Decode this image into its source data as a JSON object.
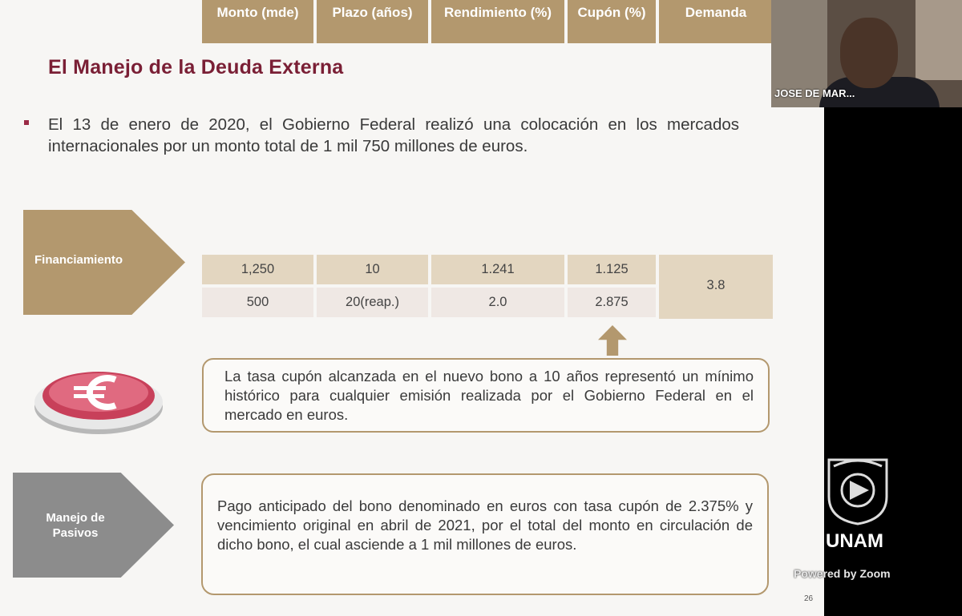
{
  "slide": {
    "title": "El Manejo de la Deuda Externa",
    "bullet": "El 13 de enero de 2020, el Gobierno Federal realizó una colocación en los mercados internacionales por un monto total de 1 mil 750 millones de euros.",
    "financing_label": "Financiamiento",
    "table": {
      "headers": [
        "Monto (mde)",
        "Plazo (años)",
        "Rendimiento (%)",
        "Cupón (%)",
        "Demanda"
      ],
      "rows": [
        [
          "1,250",
          "10",
          "1.241",
          "1.125"
        ],
        [
          "500",
          "20(reap.)",
          "2.0",
          "2.875"
        ]
      ],
      "demand_value": "3.8"
    },
    "note_coupon": "La tasa cupón alcanzada en el nuevo bono a 10 años representó un mínimo histórico para cualquier emisión realizada por el Gobierno Federal en el mercado en euros.",
    "liabilities_label": "Manejo de Pasivos",
    "note_liabilities": "Pago anticipado del bono denominado en euros con tasa cupón de 2.375% y vencimiento original en abril de 2021, por el total del monto en circulación de dicho bono, el cual asciende a 1 mil millones de euros.",
    "page_number": "26",
    "euro_icon": "euro-coin-icon",
    "colors": {
      "title": "#7a1f35",
      "accent": "#b3986e",
      "gray": "#8c8c8c"
    }
  },
  "video": {
    "participant_name": "JOSE DE MAR..."
  },
  "branding": {
    "unam": "UNAM",
    "powered_by": "Powered by Zoom"
  }
}
